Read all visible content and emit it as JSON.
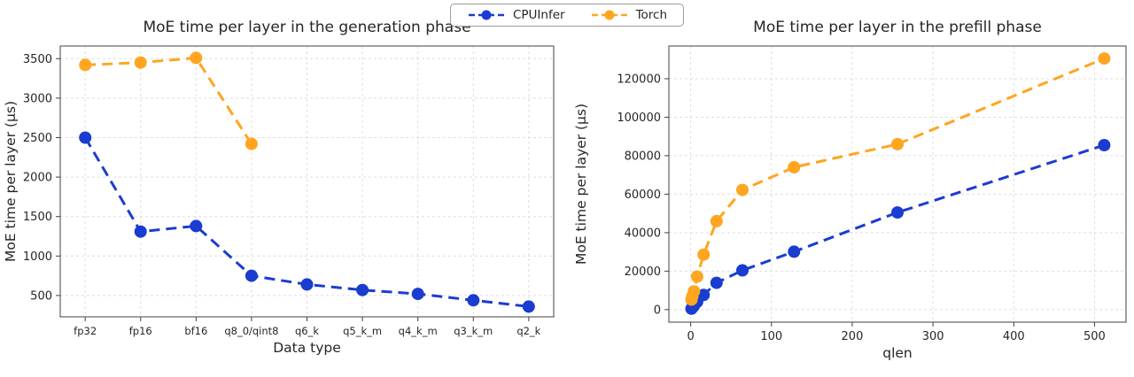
{
  "legend": {
    "items": [
      {
        "label": "CPUInfer",
        "color": "#1a3cd1"
      },
      {
        "label": "Torch",
        "color": "#ffa520"
      }
    ]
  },
  "chart_data": [
    {
      "type": "line",
      "title": "MoE time per layer in the generation phase",
      "xlabel": "Data type",
      "ylabel": "MoE time per layer (μs)",
      "categories": [
        "fp32",
        "fp16",
        "bf16",
        "q8_0/qint8",
        "q6_k",
        "q5_k_m",
        "q4_k_m",
        "q3_k_m",
        "q2_k"
      ],
      "yticks": [
        500,
        1000,
        1500,
        2000,
        2500,
        3000,
        3500
      ],
      "xlim": [
        -0.45,
        8.45
      ],
      "ylim": [
        230,
        3660
      ],
      "grid": true,
      "line_style": "dashed",
      "legend_position": "figure-top-center",
      "series": [
        {
          "name": "CPUInfer",
          "color": "#1a3cd1",
          "values": [
            2500,
            1310,
            1380,
            750,
            640,
            570,
            520,
            440,
            360
          ]
        },
        {
          "name": "Torch",
          "color": "#ffa520",
          "values": [
            3420,
            3450,
            3510,
            2420,
            null,
            null,
            null,
            null,
            null
          ]
        }
      ]
    },
    {
      "type": "line",
      "title": "MoE time per layer in the prefill phase",
      "xlabel": "qlen",
      "ylabel": "MoE time per layer (μs)",
      "x": [
        1,
        2,
        4,
        8,
        16,
        32,
        64,
        128,
        256,
        512
      ],
      "xticks": [
        0,
        100,
        200,
        300,
        400,
        500
      ],
      "yticks": [
        0,
        20000,
        40000,
        60000,
        80000,
        100000,
        120000
      ],
      "xlim": [
        -27,
        539
      ],
      "ylim": [
        -6500,
        137000
      ],
      "grid": true,
      "line_style": "dashed",
      "legend_position": "figure-top-center",
      "series": [
        {
          "name": "CPUInfer",
          "color": "#1a3cd1",
          "values": [
            500,
            1000,
            2000,
            4100,
            7600,
            13900,
            20400,
            30100,
            50500,
            85500
          ]
        },
        {
          "name": "Torch",
          "color": "#ffa520",
          "values": [
            5200,
            6800,
            9500,
            17200,
            28600,
            46000,
            62200,
            74000,
            86000,
            130500
          ]
        }
      ]
    }
  ]
}
